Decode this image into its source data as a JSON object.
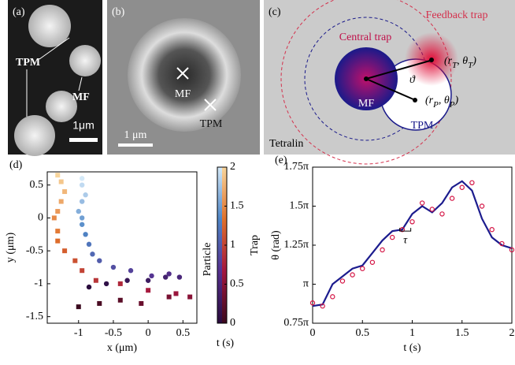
{
  "panels": {
    "a": {
      "label": "(a)",
      "tpm": "TPM",
      "mf": "MF",
      "scale": "1μm"
    },
    "b": {
      "label": "(b)",
      "mf": "MF",
      "tpm": "TPM",
      "scale": "1 μm"
    },
    "c": {
      "label": "(c)",
      "feedback": "Feedback trap",
      "central": "Central trap",
      "mf": "MF",
      "tpm": "TPM",
      "solvent": "Tetralin",
      "angle": "ϑ",
      "trap_coord": [
        "(r",
        "T",
        ", θ",
        "T",
        ")"
      ],
      "particle_coord": [
        "(r",
        "P",
        ", θ",
        "P",
        ")"
      ]
    }
  },
  "chart_data": [
    {
      "type": "scatter",
      "panel": "(d)",
      "x_label": "x (μm)",
      "y_label": "y (μm)",
      "xlim": [
        -1.45,
        0.7
      ],
      "ylim": [
        -1.6,
        0.7
      ],
      "xticks": [
        -1,
        -0.5,
        0,
        0.5
      ],
      "yticks": [
        -1.5,
        -1,
        -0.5,
        0,
        0.5
      ],
      "colorbar": {
        "label": "t (s)",
        "lim": [
          0,
          2
        ],
        "ticks": [
          0,
          0.5,
          1,
          1.5,
          2
        ]
      },
      "series": [
        {
          "name": "Particle",
          "marker": "circle",
          "colormap": [
            "#2a0b3c",
            "#55318f",
            "#4f86c6",
            "#d4e9f8"
          ],
          "t": [
            0,
            0.1,
            0.2,
            0.3,
            0.4,
            0.5,
            0.6,
            0.7,
            0.8,
            0.9,
            1.0,
            1.1,
            1.2,
            1.3,
            1.4,
            1.5,
            1.6,
            1.7,
            1.8,
            1.9,
            2.0
          ],
          "x": [
            -0.85,
            -0.6,
            -0.3,
            0,
            0.25,
            0.45,
            0.3,
            0.05,
            -0.25,
            -0.5,
            -0.7,
            -0.8,
            -0.85,
            -0.9,
            -0.95,
            -0.95,
            -1.0,
            -0.95,
            -0.9,
            -0.95,
            -0.95
          ],
          "y": [
            -1.05,
            -1.0,
            -0.95,
            -0.95,
            -0.9,
            -0.9,
            -0.85,
            -0.88,
            -0.8,
            -0.75,
            -0.65,
            -0.55,
            -0.4,
            -0.25,
            -0.1,
            0,
            0.1,
            0.25,
            0.35,
            0.5,
            0.6
          ]
        },
        {
          "name": "Trap",
          "marker": "square",
          "colormap": [
            "#3a0a1e",
            "#a3163f",
            "#e0702a",
            "#f8d59c"
          ],
          "t": [
            0,
            0.1,
            0.2,
            0.3,
            0.4,
            0.5,
            0.6,
            0.7,
            0.8,
            0.9,
            1.0,
            1.1,
            1.2,
            1.3,
            1.4,
            1.5,
            1.6,
            1.7,
            1.8,
            1.9,
            2.0
          ],
          "x": [
            -1.0,
            -0.7,
            -0.4,
            -0.1,
            0.3,
            0.6,
            0.4,
            0.0,
            -0.4,
            -0.75,
            -0.95,
            -1.05,
            -1.2,
            -1.3,
            -1.3,
            -1.35,
            -1.3,
            -1.25,
            -1.2,
            -1.25,
            -1.3
          ],
          "y": [
            -1.35,
            -1.3,
            -1.25,
            -1.3,
            -1.2,
            -1.2,
            -1.15,
            -1.1,
            -1.0,
            -0.95,
            -0.8,
            -0.65,
            -0.5,
            -0.35,
            -0.2,
            0,
            0.1,
            0.25,
            0.4,
            0.55,
            0.65
          ]
        }
      ]
    },
    {
      "type": "line",
      "panel": "(e)",
      "x_label": "t (s)",
      "y_label": "θ (rad)",
      "xlim": [
        0,
        2
      ],
      "ylim": [
        0.75,
        1.75
      ],
      "xticks": [
        0,
        0.5,
        1,
        1.5,
        2
      ],
      "yticks": [
        {
          "value": 0.75,
          "label": "0.75π"
        },
        {
          "value": 1,
          "label": "π"
        },
        {
          "value": 1.25,
          "label": "1.25π"
        },
        {
          "value": 1.5,
          "label": "1.5π"
        },
        {
          "value": 1.75,
          "label": "1.75π"
        }
      ],
      "annotation": {
        "text": "τ",
        "x": 0.93,
        "y": 1.3
      },
      "x": [
        0,
        0.1,
        0.2,
        0.3,
        0.4,
        0.5,
        0.6,
        0.7,
        0.8,
        0.9,
        1.0,
        1.1,
        1.2,
        1.3,
        1.4,
        1.5,
        1.6,
        1.7,
        1.8,
        1.9,
        2.0
      ],
      "series": [
        {
          "name": "Particle",
          "color": "#1c1c8e",
          "marker": "line",
          "values": [
            0.86,
            0.87,
            1.0,
            1.05,
            1.1,
            1.12,
            1.2,
            1.28,
            1.34,
            1.35,
            1.45,
            1.5,
            1.46,
            1.52,
            1.62,
            1.66,
            1.6,
            1.42,
            1.3,
            1.25,
            1.23
          ]
        },
        {
          "name": "Trap",
          "color": "#d41343",
          "marker": "circle",
          "values": [
            0.88,
            0.86,
            0.92,
            1.02,
            1.06,
            1.1,
            1.14,
            1.22,
            1.3,
            1.35,
            1.4,
            1.52,
            1.48,
            1.45,
            1.55,
            1.62,
            1.65,
            1.5,
            1.35,
            1.26,
            1.22
          ]
        }
      ]
    }
  ]
}
